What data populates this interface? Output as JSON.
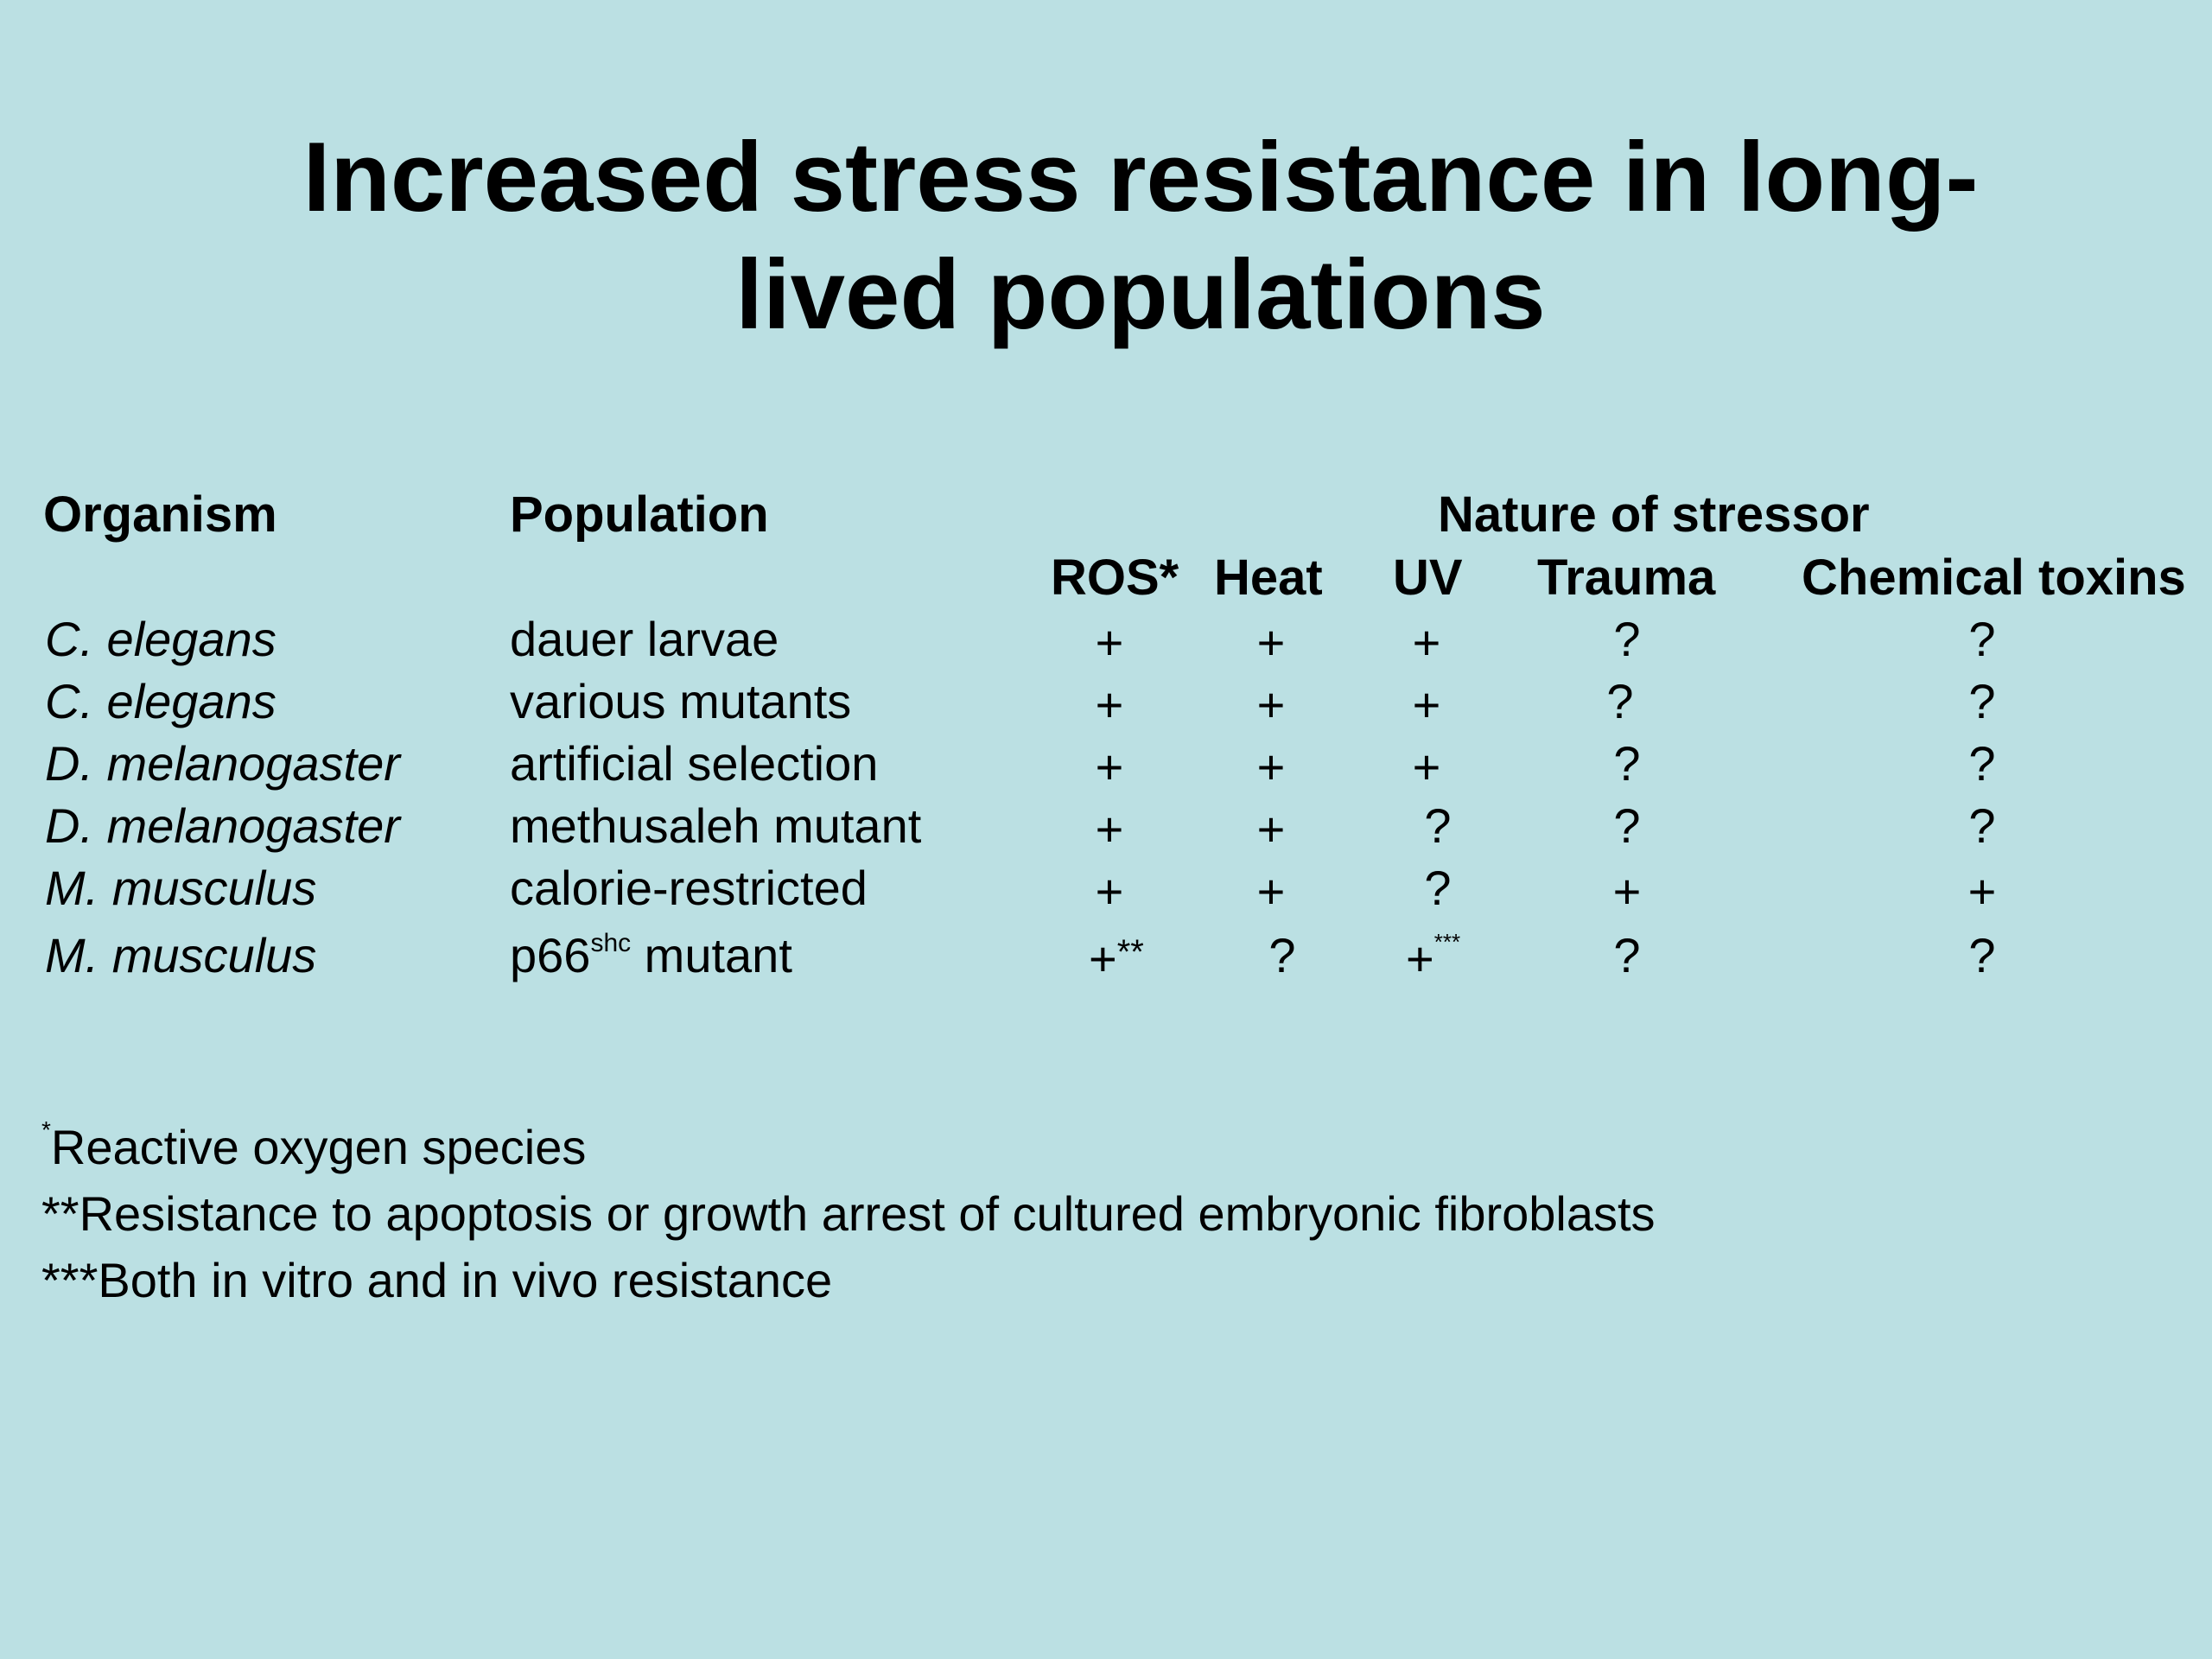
{
  "title_line1": "Increased stress resistance in long-",
  "title_line2": "lived populations",
  "headers": {
    "organism": "Organism",
    "population": "Population",
    "nature": "Nature of stressor",
    "ros": "ROS*",
    "heat": "Heat",
    "uv": "UV",
    "trauma": "Trauma",
    "chemical": "Chemical toxins"
  },
  "rows": [
    {
      "organism": "C. elegans",
      "population": "dauer larvae",
      "ros": "+",
      "heat": "+",
      "uv": "+",
      "trauma": "?",
      "chemical": "?"
    },
    {
      "organism": "C. elegans",
      "population": "various mutants",
      "ros": "+",
      "heat": "+",
      "uv": "+",
      "trauma": "?",
      "chemical": "?"
    },
    {
      "organism": "D. melanogaster",
      "population": "artificial selection",
      "ros": "+",
      "heat": "+",
      "uv": "+",
      "trauma": "?",
      "chemical": "?"
    },
    {
      "organism": "D. melanogaster",
      "population": "methusaleh mutant",
      "ros": "+",
      "heat": "+",
      "uv": "?",
      "trauma": "?",
      "chemical": "?"
    },
    {
      "organism": "M. musculus",
      "population": "calorie-restricted",
      "ros": "+",
      "heat": "+",
      "uv": "?",
      "trauma": "+",
      "chemical": "+"
    },
    {
      "organism": "M. musculus",
      "population_pre": "p66",
      "population_sup": "shc",
      "population_post": " mutant",
      "ros": "+",
      "ros_sup": "**",
      "heat": "?",
      "uv": "+",
      "uv_sup": "***",
      "trauma": "?",
      "chemical": "?"
    }
  ],
  "footnotes": {
    "f1_mark": "*",
    "f1_text": "Reactive oxygen species",
    "f2": "**Resistance to apoptosis or growth arrest of cultured embryonic fibroblasts",
    "f3": "***Both in vitro and in vivo resistance"
  }
}
